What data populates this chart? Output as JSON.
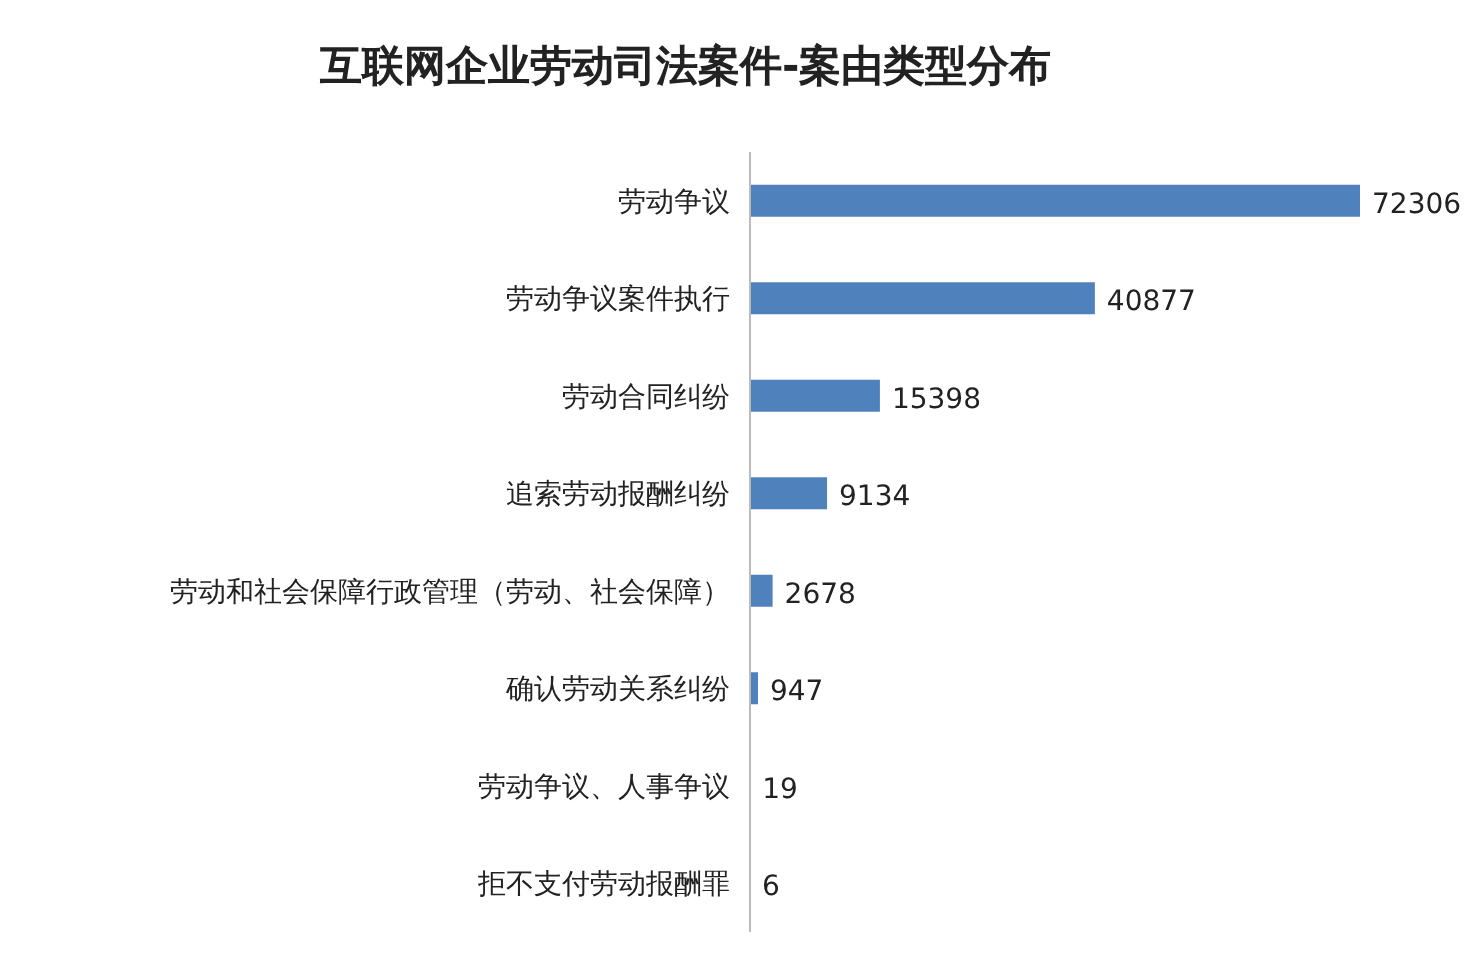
{
  "chart_data": {
    "type": "bar",
    "orientation": "horizontal",
    "title": "互联网企业劳动司法案件-案由类型分布",
    "categories": [
      "劳动争议",
      "劳动争议案件执行",
      "劳动合同纠纷",
      "追索劳动报酬纠纷",
      "劳动和社会保障行政管理（劳动、社会保障）",
      "确认劳动关系纠纷",
      "劳动争议、人事争议",
      "拒不支付劳动报酬罪"
    ],
    "values": [
      72306,
      40877,
      15398,
      9134,
      2678,
      947,
      19,
      6
    ],
    "color": "#4f81bd",
    "data_labels": true
  }
}
